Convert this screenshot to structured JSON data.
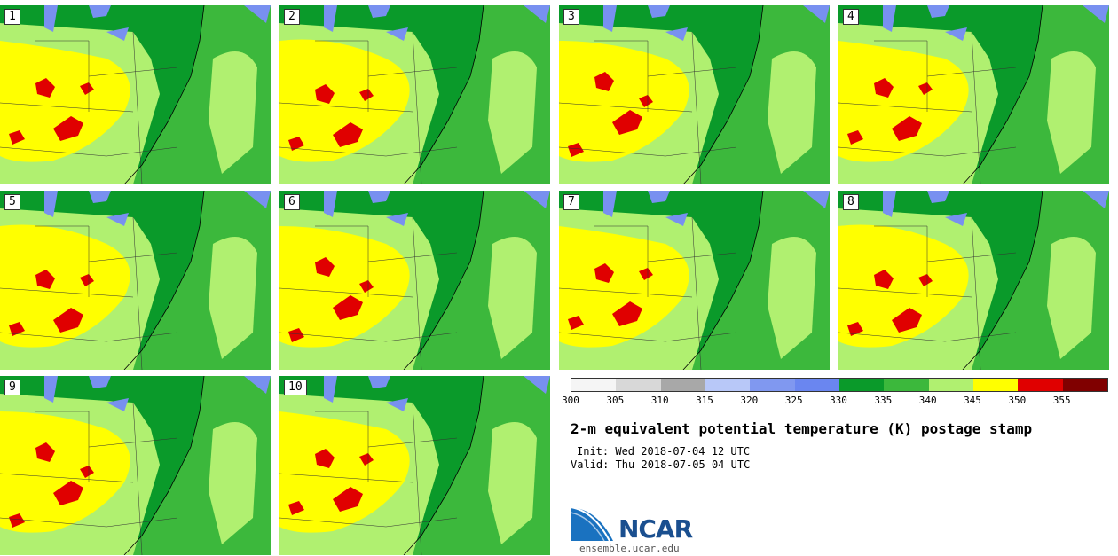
{
  "panels": [
    "1",
    "2",
    "3",
    "4",
    "5",
    "6",
    "7",
    "8",
    "9",
    "10"
  ],
  "colorbar": {
    "colors": [
      "#f5f5f5",
      "#d8d8d8",
      "#a8a8a8",
      "#b8c8f8",
      "#8098f0",
      "#6a86f0",
      "#0a9a2a",
      "#3cb83c",
      "#b0f070",
      "#ffff00",
      "#e00000",
      "#800000"
    ],
    "ticks": [
      "300",
      "305",
      "310",
      "315",
      "320",
      "325",
      "330",
      "335",
      "340",
      "345",
      "350",
      "355"
    ]
  },
  "title": "2-m equivalent potential temperature (K) postage stamp",
  "init": "Init: Wed 2018-07-04 12 UTC",
  "valid": "Valid: Thu 2018-07-05 04 UTC",
  "logo": "NCAR",
  "site": "ensemble.ucar.edu",
  "map_colors": {
    "ocean": "#3cb83c",
    "dark_green": "#0a9a2a",
    "light_green": "#b0f070",
    "yellow": "#ffff00",
    "red": "#e00000",
    "lake": "#7890f0"
  }
}
